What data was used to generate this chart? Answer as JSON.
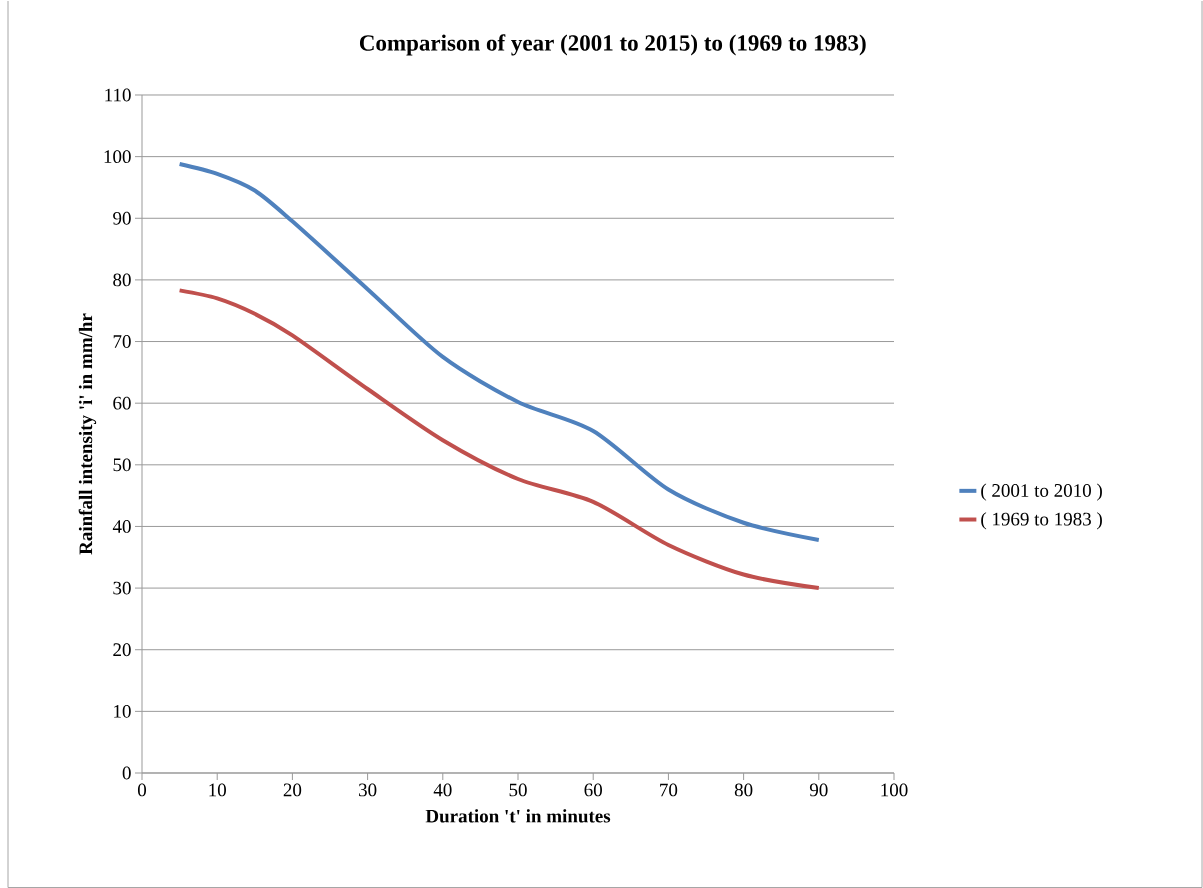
{
  "chart_data": {
    "type": "line",
    "title": "Comparison of year (2001 to 2015) to (1969 to 1983)",
    "xlabel": "Duration 't' in minutes",
    "ylabel": "Rainfall intensity 'i' in mm/hr",
    "x": [
      5,
      10,
      15,
      20,
      30,
      40,
      50,
      60,
      70,
      80,
      90
    ],
    "series": [
      {
        "name": "( 2001 to 2010 )",
        "color": "#4f81bd",
        "values": [
          98.8,
          97.2,
          94.5,
          89.5,
          78.5,
          67.5,
          60.2,
          55.5,
          46,
          40.6,
          37.8
        ]
      },
      {
        "name": "( 1969 to 1983 )",
        "color": "#c0504d",
        "values": [
          78.3,
          77,
          74.5,
          71,
          62.3,
          54,
          47.7,
          44,
          37,
          32.2,
          30
        ]
      }
    ],
    "xlim": [
      0,
      100
    ],
    "xticks": [
      0,
      10,
      20,
      30,
      40,
      50,
      60,
      70,
      80,
      90,
      100
    ],
    "ylim": [
      0,
      110
    ],
    "yticks": [
      0,
      10,
      20,
      30,
      40,
      50,
      60,
      70,
      80,
      90,
      100,
      110
    ],
    "grid": "y",
    "legend": "right",
    "marker": "none",
    "line_style": "solid"
  }
}
